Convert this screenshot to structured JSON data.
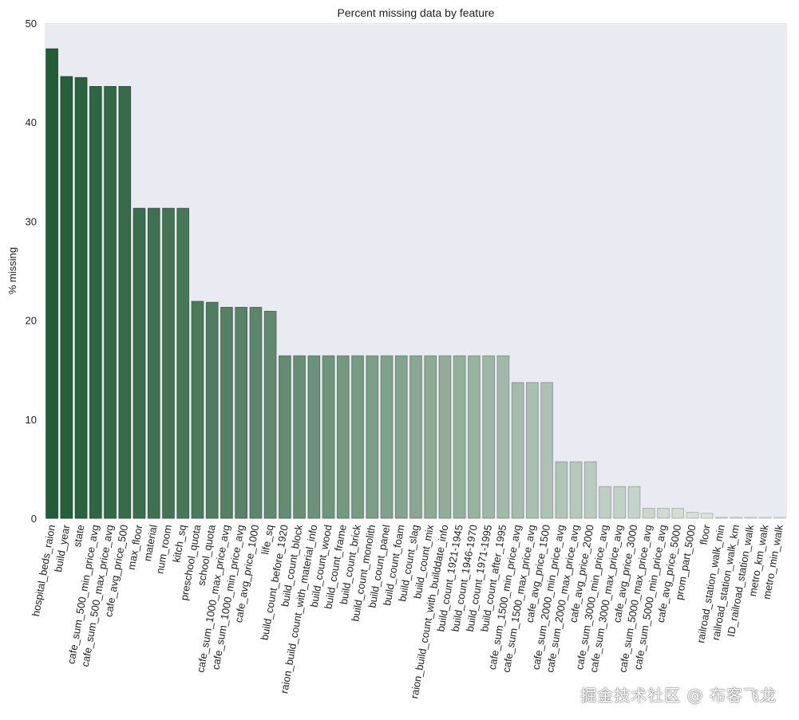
{
  "chart_data": {
    "type": "bar",
    "title": "Percent missing data by feature",
    "xlabel": "",
    "ylabel": "% missing",
    "ylim": [
      0,
      50
    ],
    "yticks": [
      0,
      10,
      20,
      30,
      40,
      50
    ],
    "grid": false,
    "colors": {
      "start": "#235c37",
      "end": "#eef2ee",
      "background": "#eaeaf2"
    },
    "categories": [
      "hospital_beds_raion",
      "build_year",
      "state",
      "cafe_sum_500_min_price_avg",
      "cafe_sum_500_max_price_avg",
      "cafe_avg_price_500",
      "max_floor",
      "material",
      "num_room",
      "kitch_sq",
      "preschool_quota",
      "school_quota",
      "cafe_sum_1000_max_price_avg",
      "cafe_sum_1000_min_price_avg",
      "cafe_avg_price_1000",
      "life_sq",
      "build_count_before_1920",
      "build_count_block",
      "raion_build_count_with_material_info",
      "build_count_wood",
      "build_count_frame",
      "build_count_brick",
      "build_count_monolith",
      "build_count_panel",
      "build_count_foam",
      "build_count_slag",
      "build_count_mix",
      "raion_build_count_with_builddate_info",
      "build_count_1921-1945",
      "build_count_1946-1970",
      "build_count_1971-1995",
      "build_count_after_1995",
      "cafe_sum_1500_min_price_avg",
      "cafe_sum_1500_max_price_avg",
      "cafe_avg_price_1500",
      "cafe_sum_2000_min_price_avg",
      "cafe_sum_2000_max_price_avg",
      "cafe_avg_price_2000",
      "cafe_sum_3000_min_price_avg",
      "cafe_sum_3000_max_price_avg",
      "cafe_avg_price_3000",
      "cafe_sum_5000_max_price_avg",
      "cafe_sum_5000_min_price_avg",
      "cafe_avg_price_5000",
      "prom_part_5000",
      "floor",
      "railroad_station_walk_min",
      "railroad_station_walk_km",
      "ID_railroad_station_walk",
      "metro_km_walk",
      "metro_min_walk"
    ],
    "values": [
      47.4,
      44.6,
      44.5,
      43.6,
      43.6,
      43.6,
      31.3,
      31.3,
      31.3,
      31.3,
      21.9,
      21.8,
      21.3,
      21.3,
      21.3,
      20.9,
      16.4,
      16.4,
      16.4,
      16.4,
      16.4,
      16.4,
      16.4,
      16.4,
      16.4,
      16.4,
      16.4,
      16.4,
      16.4,
      16.4,
      16.4,
      16.4,
      13.7,
      13.7,
      13.7,
      5.7,
      5.7,
      5.7,
      3.2,
      3.2,
      3.2,
      1.0,
      1.0,
      1.0,
      0.6,
      0.5,
      0.1,
      0.1,
      0.1,
      0.1,
      0.1
    ]
  },
  "watermark": "掘金技术社区 @ 布客飞龙"
}
